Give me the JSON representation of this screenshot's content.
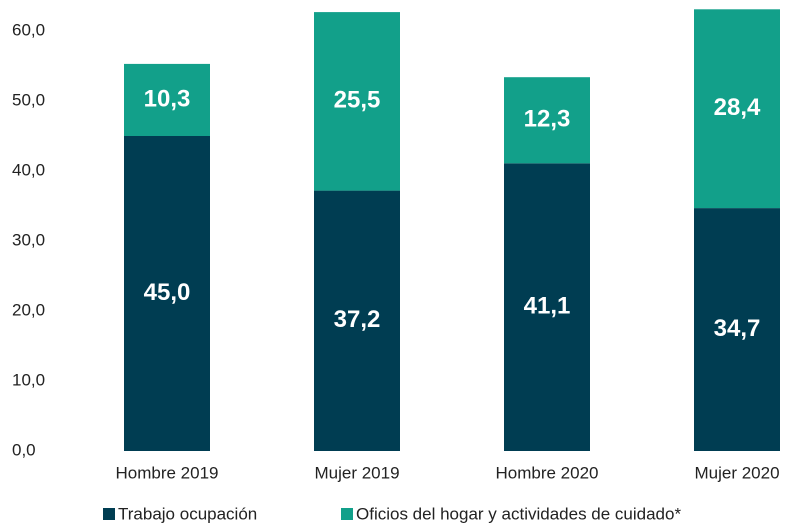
{
  "chart_data": {
    "type": "stacked_bar",
    "categories": [
      "Hombre 2019",
      "Mujer 2019",
      "Hombre 2020",
      "Mujer 2020"
    ],
    "series": [
      {
        "name": "Trabajo ocupación",
        "color": "#003d52",
        "values": [
          45.0,
          37.2,
          41.1,
          34.7
        ],
        "value_labels": [
          "45,0",
          "37,2",
          "41,1",
          "34,7"
        ]
      },
      {
        "name": "Oficios del hogar y actividades de cuidado*",
        "color": "#12a08a",
        "values": [
          10.3,
          25.5,
          12.3,
          28.4
        ],
        "value_labels": [
          "10,3",
          "25,5",
          "12,3",
          "28,4"
        ]
      }
    ],
    "ylim": [
      0,
      64
    ],
    "yticks": [
      {
        "value": 0,
        "label": "0,0"
      },
      {
        "value": 10,
        "label": "10,0"
      },
      {
        "value": 20,
        "label": "20,0"
      },
      {
        "value": 30,
        "label": "30,0"
      },
      {
        "value": 40,
        "label": "40,0"
      },
      {
        "value": 50,
        "label": "50,0"
      },
      {
        "value": 60,
        "label": "60,0"
      }
    ],
    "grid": false,
    "legend": "bottom"
  }
}
